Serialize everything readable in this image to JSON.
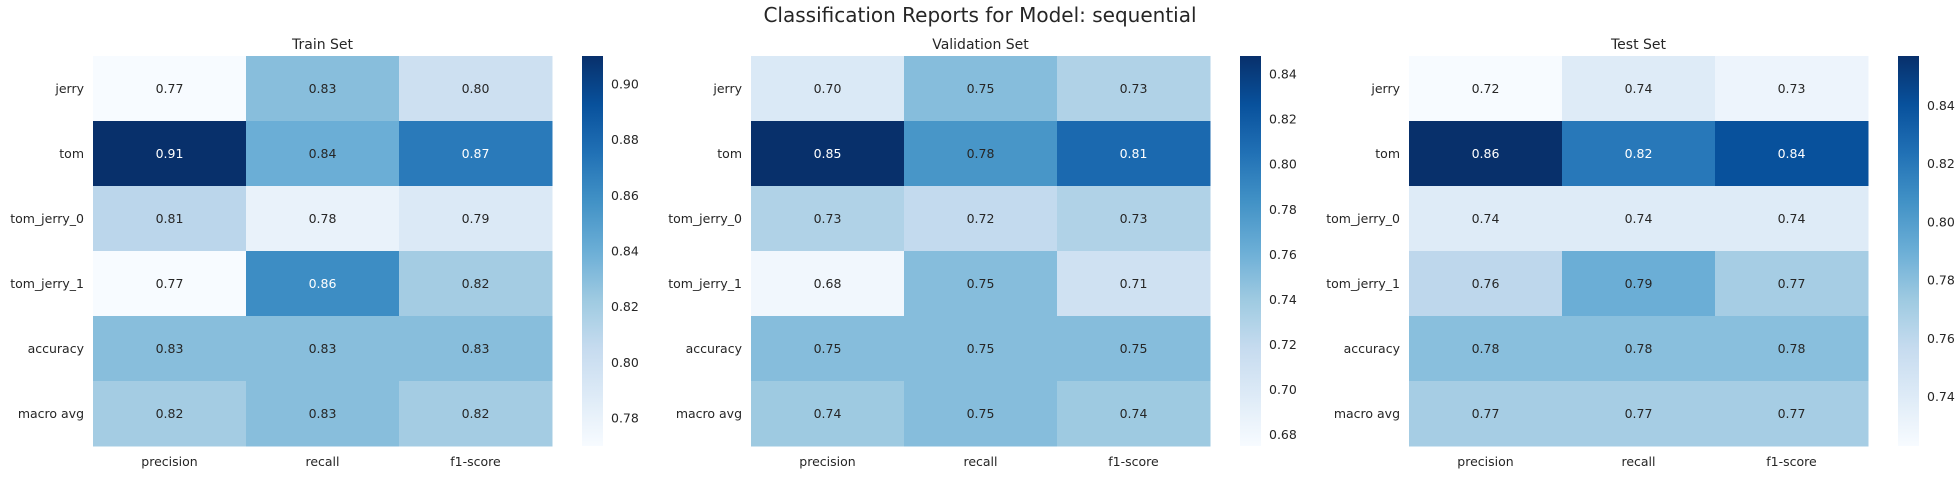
{
  "figure": {
    "suptitle": "Classification Reports for Model: sequential"
  },
  "colors": {
    "background": "#ffffff",
    "text": "#262626",
    "cmap_blues": [
      "#f7fbff",
      "#deebf7",
      "#c6dbef",
      "#9ecae1",
      "#6baed6",
      "#4292c6",
      "#2171b5",
      "#08519c",
      "#08306b"
    ]
  },
  "chart_data": [
    {
      "type": "heatmap",
      "title": "Train Set",
      "rows": [
        "jerry",
        "tom",
        "tom_jerry_0",
        "tom_jerry_1",
        "accuracy",
        "macro avg"
      ],
      "columns": [
        "precision",
        "recall",
        "f1-score"
      ],
      "values": [
        [
          0.77,
          0.83,
          0.8
        ],
        [
          0.91,
          0.84,
          0.87
        ],
        [
          0.81,
          0.78,
          0.79
        ],
        [
          0.77,
          0.86,
          0.82
        ],
        [
          0.83,
          0.83,
          0.83
        ],
        [
          0.82,
          0.83,
          0.82
        ]
      ],
      "colorbar": {
        "cmap": "Blues",
        "range": [
          0.77,
          0.91
        ],
        "ticks": [
          0.78,
          0.8,
          0.82,
          0.84,
          0.86,
          0.88,
          0.9
        ],
        "tick_labels": [
          "0.78",
          "0.80",
          "0.82",
          "0.84",
          "0.86",
          "0.88",
          "0.90"
        ]
      }
    },
    {
      "type": "heatmap",
      "title": "Validation Set",
      "rows": [
        "jerry",
        "tom",
        "tom_jerry_0",
        "tom_jerry_1",
        "accuracy",
        "macro avg"
      ],
      "columns": [
        "precision",
        "recall",
        "f1-score"
      ],
      "values": [
        [
          0.7,
          0.75,
          0.73
        ],
        [
          0.85,
          0.78,
          0.81
        ],
        [
          0.73,
          0.72,
          0.73
        ],
        [
          0.68,
          0.75,
          0.71
        ],
        [
          0.75,
          0.75,
          0.75
        ],
        [
          0.74,
          0.75,
          0.74
        ]
      ],
      "colorbar": {
        "cmap": "Blues",
        "range": [
          0.675,
          0.848
        ],
        "ticks": [
          0.68,
          0.7,
          0.72,
          0.74,
          0.76,
          0.78,
          0.8,
          0.82,
          0.84
        ],
        "tick_labels": [
          "0.68",
          "0.70",
          "0.72",
          "0.74",
          "0.76",
          "0.78",
          "0.80",
          "0.82",
          "0.84"
        ]
      }
    },
    {
      "type": "heatmap",
      "title": "Test Set",
      "rows": [
        "jerry",
        "tom",
        "tom_jerry_0",
        "tom_jerry_1",
        "accuracy",
        "macro avg"
      ],
      "columns": [
        "precision",
        "recall",
        "f1-score"
      ],
      "values": [
        [
          0.72,
          0.74,
          0.73
        ],
        [
          0.86,
          0.82,
          0.84
        ],
        [
          0.74,
          0.74,
          0.74
        ],
        [
          0.76,
          0.79,
          0.77
        ],
        [
          0.78,
          0.78,
          0.78
        ],
        [
          0.77,
          0.77,
          0.77
        ]
      ],
      "colorbar": {
        "cmap": "Blues",
        "range": [
          0.723,
          0.857
        ],
        "ticks": [
          0.74,
          0.76,
          0.78,
          0.8,
          0.82,
          0.84
        ],
        "tick_labels": [
          "0.74",
          "0.76",
          "0.78",
          "0.80",
          "0.82",
          "0.84"
        ]
      }
    }
  ]
}
